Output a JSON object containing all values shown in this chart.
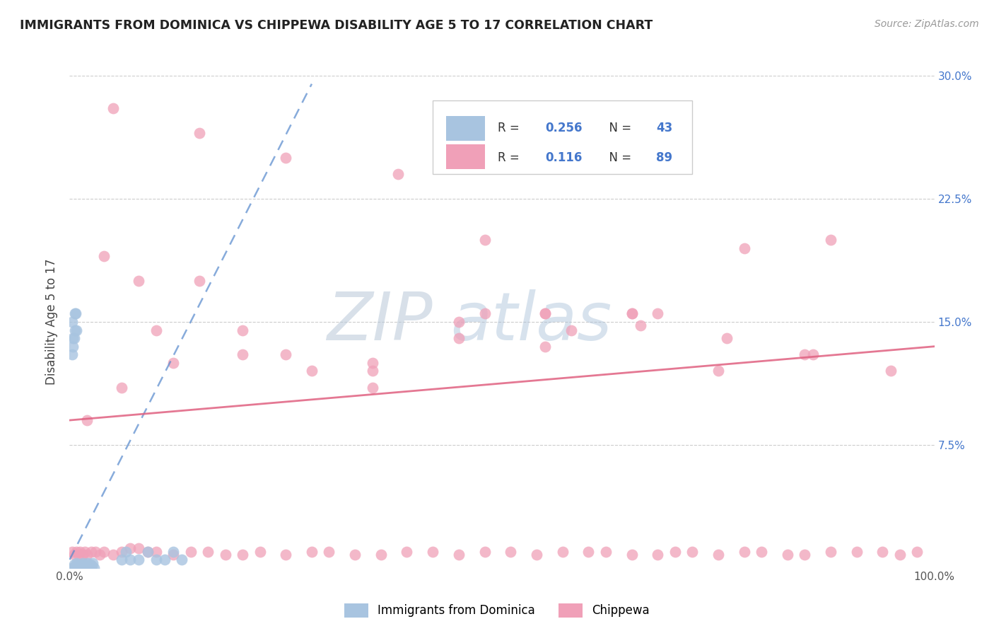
{
  "title": "IMMIGRANTS FROM DOMINICA VS CHIPPEWA DISABILITY AGE 5 TO 17 CORRELATION CHART",
  "source": "Source: ZipAtlas.com",
  "ylabel": "Disability Age 5 to 17",
  "legend_label1": "Immigrants from Dominica",
  "legend_label2": "Chippewa",
  "R1": 0.256,
  "N1": 43,
  "R2": 0.116,
  "N2": 89,
  "xlim": [
    0.0,
    1.0
  ],
  "ylim": [
    0.0,
    0.3
  ],
  "color1": "#a8c4e0",
  "color2": "#f0a0b8",
  "trendline1_color": "#5588cc",
  "trendline2_color": "#e06080",
  "ytick_color": "#4477cc",
  "watermark_color": "#c8d8ea",
  "blue_x": [
    0.003,
    0.005,
    0.006,
    0.007,
    0.008,
    0.009,
    0.01,
    0.011,
    0.012,
    0.013,
    0.014,
    0.015,
    0.016,
    0.017,
    0.018,
    0.019,
    0.02,
    0.021,
    0.022,
    0.023,
    0.024,
    0.025,
    0.026,
    0.027,
    0.028,
    0.003,
    0.004,
    0.005,
    0.006,
    0.007,
    0.06,
    0.065,
    0.07,
    0.08,
    0.09,
    0.1,
    0.11,
    0.12,
    0.13,
    0.003,
    0.004,
    0.006,
    0.008
  ],
  "blue_y": [
    0.0,
    0.002,
    0.0,
    0.001,
    0.003,
    0.0,
    0.002,
    0.001,
    0.0,
    0.002,
    0.001,
    0.003,
    0.0,
    0.001,
    0.002,
    0.0,
    0.001,
    0.003,
    0.0,
    0.001,
    0.002,
    0.0,
    0.001,
    0.003,
    0.0,
    0.13,
    0.135,
    0.14,
    0.145,
    0.155,
    0.005,
    0.01,
    0.005,
    0.005,
    0.01,
    0.005,
    0.005,
    0.01,
    0.005,
    0.15,
    0.14,
    0.155,
    0.145
  ],
  "pink_x": [
    0.003,
    0.005,
    0.008,
    0.01,
    0.012,
    0.015,
    0.018,
    0.02,
    0.025,
    0.03,
    0.035,
    0.04,
    0.05,
    0.06,
    0.07,
    0.08,
    0.09,
    0.1,
    0.12,
    0.14,
    0.16,
    0.18,
    0.2,
    0.22,
    0.25,
    0.28,
    0.3,
    0.33,
    0.36,
    0.39,
    0.42,
    0.45,
    0.48,
    0.51,
    0.54,
    0.57,
    0.6,
    0.62,
    0.65,
    0.68,
    0.7,
    0.72,
    0.75,
    0.78,
    0.8,
    0.83,
    0.85,
    0.88,
    0.91,
    0.94,
    0.96,
    0.98,
    0.04,
    0.08,
    0.15,
    0.25,
    0.35,
    0.45,
    0.55,
    0.65,
    0.35,
    0.48,
    0.58,
    0.68,
    0.78,
    0.88,
    0.05,
    0.15,
    0.25,
    0.38,
    0.48,
    0.02,
    0.06,
    0.12,
    0.2,
    0.28,
    0.35,
    0.45,
    0.55,
    0.65,
    0.75,
    0.85,
    0.95,
    0.1,
    0.2,
    0.55,
    0.66,
    0.76,
    0.86
  ],
  "pink_y": [
    0.01,
    0.008,
    0.01,
    0.008,
    0.01,
    0.008,
    0.01,
    0.008,
    0.01,
    0.01,
    0.008,
    0.01,
    0.008,
    0.01,
    0.012,
    0.012,
    0.01,
    0.01,
    0.008,
    0.01,
    0.01,
    0.008,
    0.008,
    0.01,
    0.008,
    0.01,
    0.01,
    0.008,
    0.008,
    0.01,
    0.01,
    0.008,
    0.01,
    0.01,
    0.008,
    0.01,
    0.01,
    0.01,
    0.008,
    0.008,
    0.01,
    0.01,
    0.008,
    0.01,
    0.01,
    0.008,
    0.008,
    0.01,
    0.01,
    0.01,
    0.008,
    0.01,
    0.19,
    0.175,
    0.175,
    0.13,
    0.125,
    0.14,
    0.155,
    0.155,
    0.12,
    0.2,
    0.145,
    0.155,
    0.195,
    0.2,
    0.28,
    0.265,
    0.25,
    0.24,
    0.155,
    0.09,
    0.11,
    0.125,
    0.13,
    0.12,
    0.11,
    0.15,
    0.135,
    0.155,
    0.12,
    0.13,
    0.12,
    0.145,
    0.145,
    0.155,
    0.148,
    0.14,
    0.13
  ],
  "blue_trend_x": [
    0.0,
    0.28
  ],
  "blue_trend_y": [
    0.005,
    0.295
  ],
  "pink_trend_x": [
    0.0,
    1.0
  ],
  "pink_trend_y": [
    0.09,
    0.135
  ]
}
